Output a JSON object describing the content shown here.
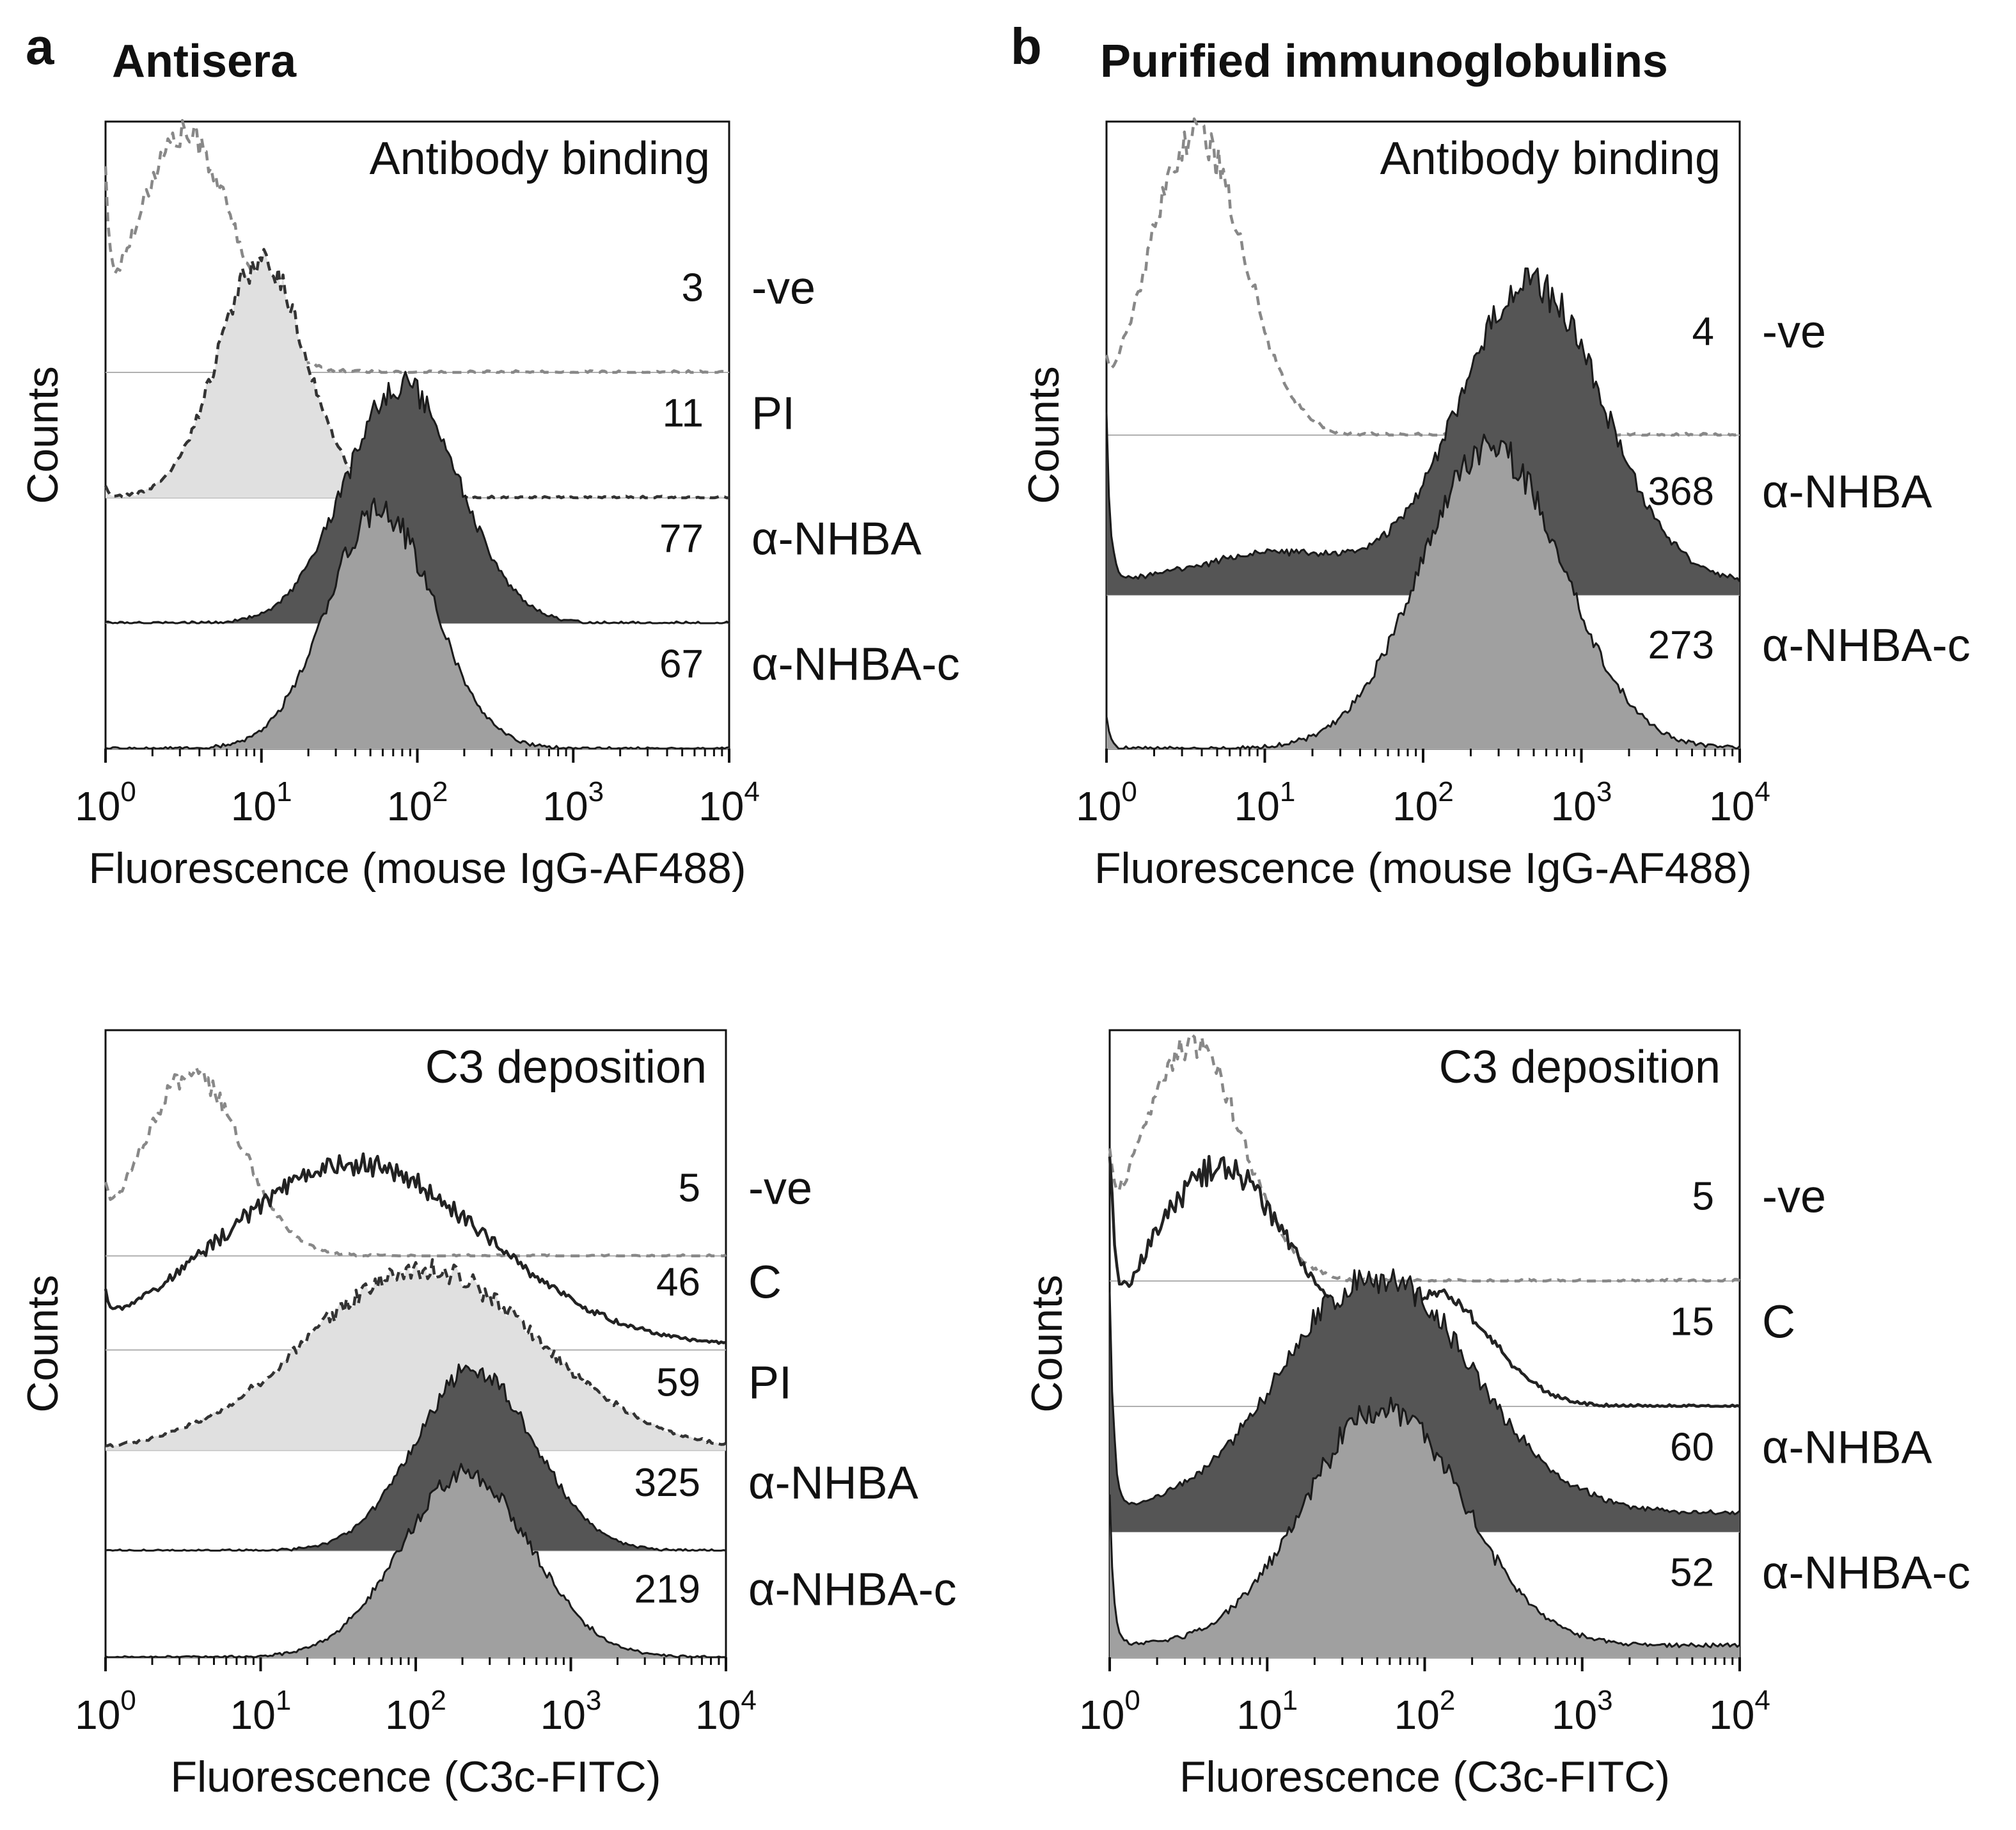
{
  "colors": {
    "neg_stroke": "#888888",
    "pi_fill": "#e0e0e0",
    "pi_stroke": "#333333",
    "c_stroke": "#222222",
    "nhba_fill": "#555555",
    "nhba_stroke": "#1a1a1a",
    "nhbac_fill": "#a0a0a0",
    "nhbac_stroke": "#1a1a1a",
    "baseline": "#b0b0b0"
  },
  "chart_data": [
    {
      "id": "a_top",
      "type": "histogram-overlay",
      "panel_letter": "a",
      "panel_title": "Antisera",
      "title": "Antibody binding",
      "xlabel": "Fluorescence (mouse IgG-AF488)",
      "ylabel": "Counts",
      "xscale": "log",
      "xlim": [
        1,
        10000
      ],
      "xtick_labels": [
        {
          "base": "10",
          "exp": "0"
        },
        {
          "base": "10",
          "exp": "1"
        },
        {
          "base": "10",
          "exp": "2"
        },
        {
          "base": "10",
          "exp": "3"
        },
        {
          "base": "10",
          "exp": "4"
        }
      ],
      "series": [
        {
          "label": "-ve",
          "mfi": "3",
          "style": "neg",
          "peaks": [
            {
              "x": 3.2,
              "h": 1.0,
              "w": 0.32
            }
          ],
          "floor": 0.0,
          "spike0": 0.6
        },
        {
          "label": "PI",
          "mfi": "11",
          "style": "pi",
          "peaks": [
            {
              "x": 10,
              "h": 1.0,
              "w": 0.28
            }
          ],
          "floor": 0.0,
          "spike0": 0.05
        },
        {
          "label": "α-NHBA",
          "mfi": "77",
          "style": "nhba",
          "peaks": [
            {
              "x": 80,
              "h": 1.0,
              "w": 0.36
            }
          ],
          "floor": 0.0,
          "spike0": 0.0
        },
        {
          "label": "α-NHBA-c",
          "mfi": "67",
          "style": "nhbac",
          "peaks": [
            {
              "x": 58,
              "h": 1.0,
              "w": 0.34
            }
          ],
          "floor": 0.0,
          "spike0": 0.0
        }
      ]
    },
    {
      "id": "b_top",
      "type": "histogram-overlay",
      "panel_letter": "b",
      "panel_title": "Purified immunoglobulins",
      "title": "Antibody binding",
      "xlabel": "Fluorescence (mouse IgG-AF488)",
      "ylabel": "Counts",
      "xscale": "log",
      "xlim": [
        1,
        10000
      ],
      "xtick_labels": [
        {
          "base": "10",
          "exp": "0"
        },
        {
          "base": "10",
          "exp": "1"
        },
        {
          "base": "10",
          "exp": "2"
        },
        {
          "base": "10",
          "exp": "3"
        },
        {
          "base": "10",
          "exp": "4"
        }
      ],
      "series": [
        {
          "label": "-ve",
          "mfi": "4",
          "style": "neg",
          "peaks": [
            {
              "x": 3.7,
              "h": 1.0,
              "w": 0.3
            }
          ],
          "floor": 0.0,
          "spike0": 0.1
        },
        {
          "label": "α-NHBA",
          "mfi": "368",
          "style": "nhba",
          "peaks": [
            {
              "x": 480,
              "h": 1.0,
              "w": 0.45
            },
            {
              "x": 12,
              "h": 0.1,
              "w": 0.5
            }
          ],
          "floor": 0.04,
          "spike0": 0.55
        },
        {
          "label": "α-NHBA-c",
          "mfi": "273",
          "style": "nhbac",
          "peaks": [
            {
              "x": 270,
              "h": 1.0,
              "w": 0.45
            }
          ],
          "floor": 0.0,
          "spike0": 0.1
        }
      ]
    },
    {
      "id": "a_bottom",
      "type": "histogram-overlay",
      "panel_letter": "",
      "panel_title": "",
      "title": "C3 deposition",
      "xlabel": "Fluorescence (C3c-FITC)",
      "ylabel": "Counts",
      "xscale": "log",
      "xlim": [
        1,
        10000
      ],
      "xtick_labels": [
        {
          "base": "10",
          "exp": "0"
        },
        {
          "base": "10",
          "exp": "1"
        },
        {
          "base": "10",
          "exp": "2"
        },
        {
          "base": "10",
          "exp": "3"
        },
        {
          "base": "10",
          "exp": "4"
        }
      ],
      "series": [
        {
          "label": "-ve",
          "mfi": "5",
          "style": "neg",
          "peaks": [
            {
              "x": 3.6,
              "h": 1.0,
              "w": 0.32
            }
          ],
          "floor": 0.0,
          "spike0": 0.2
        },
        {
          "label": "C",
          "mfi": "46",
          "style": "c",
          "peaks": [
            {
              "x": 40,
              "h": 1.0,
              "w": 0.85
            }
          ],
          "floor": 0.02,
          "spike0": 0.15
        },
        {
          "label": "PI",
          "mfi": "59",
          "style": "pi",
          "peaks": [
            {
              "x": 110,
              "h": 1.0,
              "w": 0.75
            }
          ],
          "floor": 0.0,
          "spike0": 0.0
        },
        {
          "label": "α-NHBA",
          "mfi": "325",
          "style": "nhba",
          "peaks": [
            {
              "x": 240,
              "h": 1.0,
              "w": 0.38
            }
          ],
          "floor": 0.0,
          "spike0": 0.0
        },
        {
          "label": "α-NHBA-c",
          "mfi": "219",
          "style": "nhbac",
          "peaks": [
            {
              "x": 210,
              "h": 1.0,
              "w": 0.42
            }
          ],
          "floor": 0.0,
          "spike0": 0.0
        }
      ]
    },
    {
      "id": "b_bottom",
      "type": "histogram-overlay",
      "panel_letter": "",
      "panel_title": "",
      "title": "C3 deposition",
      "xlabel": "Fluorescence (C3c-FITC)",
      "ylabel": "Counts",
      "xscale": "log",
      "xlim": [
        1,
        10000
      ],
      "xtick_labels": [
        {
          "base": "10",
          "exp": "0"
        },
        {
          "base": "10",
          "exp": "1"
        },
        {
          "base": "10",
          "exp": "2"
        },
        {
          "base": "10",
          "exp": "3"
        },
        {
          "base": "10",
          "exp": "4"
        }
      ],
      "series": [
        {
          "label": "-ve",
          "mfi": "5",
          "style": "neg",
          "peaks": [
            {
              "x": 3.3,
              "h": 1.0,
              "w": 0.32
            }
          ],
          "floor": 0.0,
          "spike0": 0.3
        },
        {
          "label": "C",
          "mfi": "15",
          "style": "c",
          "peaks": [
            {
              "x": 5,
              "h": 1.0,
              "w": 0.5
            },
            {
              "x": 120,
              "h": 0.45,
              "w": 0.35
            }
          ],
          "floor": 0.0,
          "spike0": 0.9
        },
        {
          "label": "α-NHBA",
          "mfi": "60",
          "style": "nhba",
          "peaks": [
            {
              "x": 50,
              "h": 1.0,
              "w": 0.6
            }
          ],
          "floor": 0.08,
          "spike0": 0.95
        },
        {
          "label": "α-NHBA-c",
          "mfi": "52",
          "style": "nhbac",
          "peaks": [
            {
              "x": 55,
              "h": 1.0,
              "w": 0.5
            }
          ],
          "floor": 0.05,
          "spike0": 0.6
        }
      ]
    }
  ]
}
